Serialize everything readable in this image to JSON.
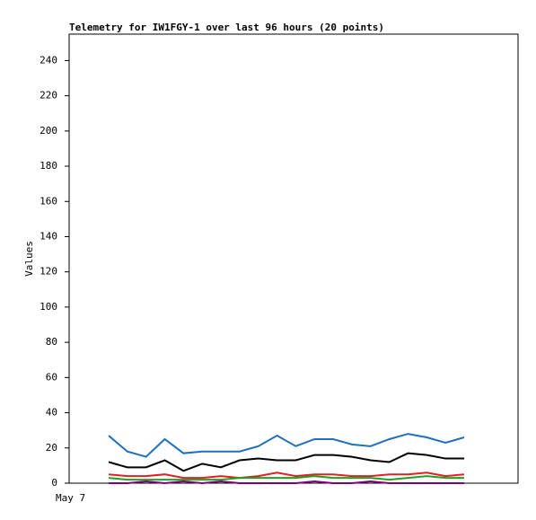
{
  "chart_data": {
    "type": "line",
    "title": "Telemetry for IW1FGY-1 over last 96 hours (20 points)",
    "y_label": "Values",
    "x_start_label": "May 7",
    "categories": [
      null,
      null,
      null,
      null,
      null,
      null,
      null,
      null,
      null,
      null,
      null,
      null,
      null,
      null,
      null,
      null,
      null,
      null,
      null,
      null
    ],
    "ylim": [
      0,
      255
    ],
    "yticks": [
      0,
      20,
      40,
      60,
      80,
      100,
      120,
      140,
      160,
      180,
      200,
      220,
      240
    ],
    "series": [
      {
        "color": "#1f6fbf",
        "values": [
          27,
          18,
          15,
          25,
          17,
          18,
          18,
          18,
          21,
          27,
          21,
          25,
          25,
          22,
          21,
          25,
          28,
          26,
          23,
          26
        ]
      },
      {
        "color": "#000000",
        "values": [
          12,
          9,
          9,
          13,
          7,
          11,
          9,
          13,
          14,
          13,
          13,
          16,
          16,
          15,
          13,
          12,
          17,
          16,
          14,
          14
        ]
      },
      {
        "color": "#e02020",
        "values": [
          5,
          4,
          4,
          5,
          3,
          3,
          4,
          3,
          4,
          6,
          4,
          5,
          5,
          4,
          4,
          5,
          5,
          6,
          4,
          5
        ]
      },
      {
        "color": "#20a020",
        "values": [
          3,
          2,
          2,
          2,
          2,
          2,
          2,
          3,
          3,
          3,
          3,
          4,
          3,
          3,
          3,
          2,
          3,
          4,
          3,
          3
        ]
      },
      {
        "color": "#800080",
        "values": [
          0,
          0,
          1,
          0,
          1,
          0,
          1,
          0,
          0,
          0,
          0,
          1,
          0,
          0,
          1,
          0,
          0,
          0,
          0,
          0
        ]
      }
    ]
  }
}
